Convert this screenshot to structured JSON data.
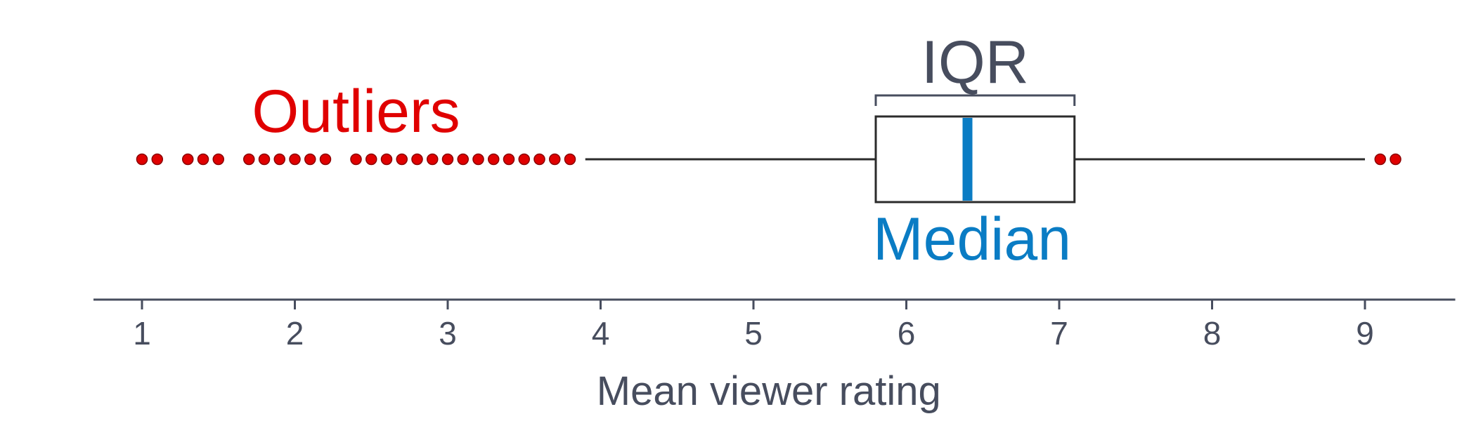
{
  "chart_data": {
    "type": "box",
    "xlabel": "Mean viewer rating",
    "xlim": [
      0.6,
      9.6
    ],
    "x_ticks": [
      "1",
      "2",
      "3",
      "4",
      "5",
      "6",
      "7",
      "8",
      "9"
    ],
    "box": {
      "q1": 5.8,
      "median": 6.4,
      "q3": 7.1,
      "whisker_low": 3.9,
      "whisker_high": 9.0
    },
    "outliers": [
      1.0,
      1.1,
      1.3,
      1.4,
      1.5,
      1.7,
      1.8,
      1.9,
      2.0,
      2.1,
      2.2,
      2.4,
      2.5,
      2.6,
      2.7,
      2.8,
      2.9,
      3.0,
      3.1,
      3.2,
      3.3,
      3.4,
      3.5,
      3.6,
      3.7,
      3.8,
      9.1,
      9.2
    ],
    "annotations": {
      "outliers": "Outliers",
      "iqr": "IQR",
      "median": "Median"
    },
    "colors": {
      "outlier": "#e00000",
      "median": "#0a7cc4",
      "axis": "#474d5e",
      "box": "#2b2b2b"
    }
  }
}
